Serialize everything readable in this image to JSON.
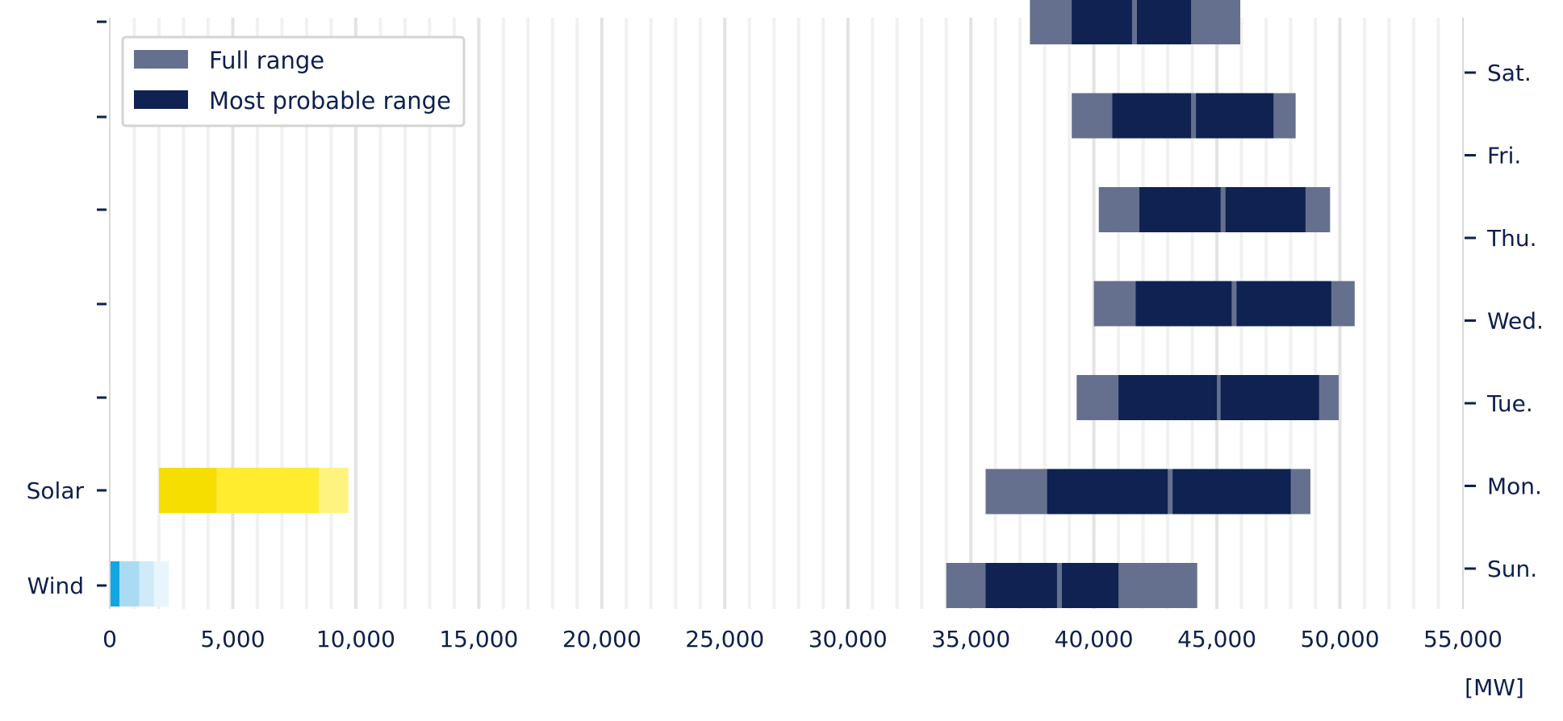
{
  "colors": {
    "full_range": "#64708e",
    "most_probable": "#0f2251",
    "text": "#0d1f4c",
    "solar": [
      "#f5de00",
      "#ffec2e",
      "#fff380"
    ],
    "wind": [
      "#11a5e3",
      "#a9dcf3",
      "#cfebf8",
      "#e9f5fc"
    ],
    "grid_minor": "#f1f1f1",
    "grid_major": "#e3e3e3"
  },
  "chart_data": {
    "type": "bar",
    "orientation": "horizontal",
    "unit_label": "[MW]",
    "xlim": [
      0,
      55000
    ],
    "x_ticks": [
      0,
      5000,
      10000,
      15000,
      20000,
      25000,
      30000,
      35000,
      40000,
      45000,
      50000,
      55000
    ],
    "x_tick_labels": [
      "0",
      "5,000",
      "10,000",
      "15,000",
      "20,000",
      "25,000",
      "30,000",
      "35,000",
      "40,000",
      "45,000",
      "50,000",
      "55,000"
    ],
    "grid": true,
    "legend": {
      "placement": "top-left",
      "entries": [
        "Full range",
        "Most probable range"
      ]
    },
    "left_axis_labels": [
      "Wind",
      "Solar",
      "",
      "",
      "",
      "",
      ""
    ],
    "right_axis_labels": [
      "Sun.",
      "Mon.",
      "Tue.",
      "Wed.",
      "Thu.",
      "Fri.",
      "Sat."
    ],
    "days": [
      {
        "label": "Sun.",
        "full_range": [
          34000,
          44200
        ],
        "most_probable": [
          [
            35600,
            38500
          ],
          [
            38700,
            41000
          ]
        ]
      },
      {
        "label": "Mon.",
        "full_range": [
          35600,
          48800
        ],
        "most_probable": [
          [
            38100,
            43000
          ],
          [
            43200,
            48000
          ]
        ]
      },
      {
        "label": "Tue.",
        "full_range": [
          39300,
          49950
        ],
        "most_probable": [
          [
            41000,
            45000
          ],
          [
            45150,
            49150
          ]
        ]
      },
      {
        "label": "Wed.",
        "full_range": [
          40000,
          50600
        ],
        "most_probable": [
          [
            41700,
            45600
          ],
          [
            45800,
            49650
          ]
        ]
      },
      {
        "label": "Thu.",
        "full_range": [
          40200,
          49600
        ],
        "most_probable": [
          [
            41850,
            45150
          ],
          [
            45350,
            48600
          ]
        ]
      },
      {
        "label": "Fri.",
        "full_range": [
          39100,
          48200
        ],
        "most_probable": [
          [
            40750,
            43950
          ],
          [
            44150,
            47300
          ]
        ]
      },
      {
        "label": "Sat.",
        "full_range": [
          37400,
          45950
        ],
        "most_probable": [
          [
            39100,
            41550
          ],
          [
            41750,
            43950
          ]
        ]
      }
    ],
    "solar": {
      "label": "Solar",
      "segments": [
        [
          2000,
          4350
        ],
        [
          4350,
          8500
        ],
        [
          8500,
          9700
        ]
      ]
    },
    "wind": {
      "label": "Wind",
      "segments": [
        [
          0,
          400
        ],
        [
          400,
          1200
        ],
        [
          1200,
          1800
        ],
        [
          1800,
          2400
        ]
      ]
    }
  }
}
